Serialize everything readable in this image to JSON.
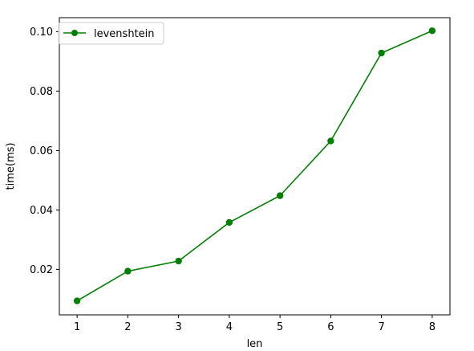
{
  "chart_data": {
    "type": "line",
    "xlabel": "len",
    "ylabel": "time(ms)",
    "x": [
      1,
      2,
      3,
      4,
      5,
      6,
      7,
      8
    ],
    "xlim": [
      0.65,
      8.35
    ],
    "ylim": [
      0.0047,
      0.1047
    ],
    "xticks": [
      1,
      2,
      3,
      4,
      5,
      6,
      7,
      8
    ],
    "yticks": [
      0.02,
      0.04,
      0.06,
      0.08,
      0.1
    ],
    "ytick_labels": [
      "0.02",
      "0.04",
      "0.06",
      "0.08",
      "0.10"
    ],
    "grid": false,
    "legend_position": "upper-left",
    "series": [
      {
        "name": "levenshtein",
        "color": "#008000",
        "marker": "circle",
        "values": [
          0.0094,
          0.0194,
          0.0228,
          0.0358,
          0.0448,
          0.0632,
          0.0928,
          0.1003
        ]
      }
    ]
  }
}
